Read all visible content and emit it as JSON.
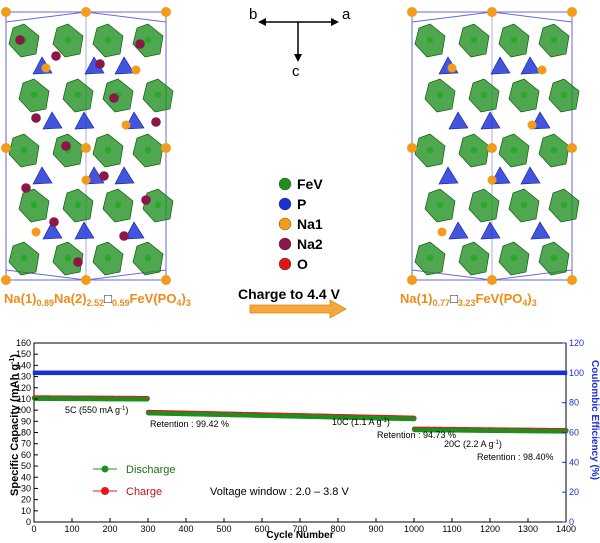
{
  "top": {
    "axes": {
      "b": "b",
      "a": "a",
      "c": "c"
    },
    "legend": [
      {
        "label": "FeV",
        "color": "#1e8f1e"
      },
      {
        "label": "P",
        "color": "#1a2fd6"
      },
      {
        "label": "Na1",
        "color": "#f39b1a"
      },
      {
        "label": "Na2",
        "color": "#8a1747"
      },
      {
        "label": "O",
        "color": "#e01414"
      }
    ],
    "formula_left": {
      "t1": "Na(1)",
      "s1": "0.89",
      "t2": "Na(2)",
      "s2": "2.52",
      "t3": "□",
      "s3": "0.59",
      "t4": "FeV(PO",
      "s4": "4",
      "t5": ")",
      "s5": "3"
    },
    "formula_right": {
      "t1": "Na(1)",
      "s1": "0.77",
      "t2": "□",
      "s2": "3.23",
      "t3": "FeV(PO",
      "s3": "4",
      "t4": ")",
      "s4": "3"
    },
    "arrow_label": "Charge to 4.4 V"
  },
  "chart_data": {
    "type": "scatter",
    "xlabel": "Cycle Number",
    "ylabel_left": "Specific Capacity (mAh g",
    "ylabel_left_sup": "-1",
    "ylabel_left_close": ")",
    "ylabel_right": "Coulombic Efficiency (%)",
    "xlim": [
      0,
      1400
    ],
    "ylim_left": [
      0,
      160
    ],
    "ylim_right": [
      0,
      120
    ],
    "x_ticks": [
      0,
      100,
      200,
      300,
      400,
      500,
      600,
      700,
      800,
      900,
      1000,
      1100,
      1200,
      1300,
      1400
    ],
    "y_ticks_left": [
      0,
      10,
      20,
      30,
      40,
      50,
      60,
      70,
      80,
      90,
      100,
      110,
      120,
      130,
      140,
      150,
      160
    ],
    "y_ticks_right": [
      0,
      20,
      40,
      60,
      80,
      100,
      120
    ],
    "series": [
      {
        "name": "Discharge",
        "color": "#1e8f1e"
      },
      {
        "name": "Charge",
        "color": "#e8161a"
      }
    ],
    "efficiency_color": "#1a2fd6",
    "segments": [
      {
        "start": 1,
        "end": 300,
        "cap_start": 111,
        "cap_end": 110.4
      },
      {
        "start": 301,
        "end": 1000,
        "cap_start": 98,
        "cap_end": 92.8
      },
      {
        "start": 1001,
        "end": 1400,
        "cap_start": 83,
        "cap_end": 81.7
      }
    ],
    "efficiency": 100,
    "annotations": [
      {
        "rate": "5C (550 mA g",
        "rate_sup": "-1",
        "rate_close": ")",
        "retention": "Retention : 99.42 %"
      },
      {
        "rate": "10C (1.1 A g",
        "rate_sup": "-1",
        "rate_close": ")",
        "retention": "Retention : 94.73 %"
      },
      {
        "rate": "20C (2.2 A g",
        "rate_sup": "-1",
        "rate_close": ")",
        "retention": "Retention : 98.40%"
      }
    ],
    "voltage_window": "Voltage window : 2.0 – 3.8 V"
  }
}
